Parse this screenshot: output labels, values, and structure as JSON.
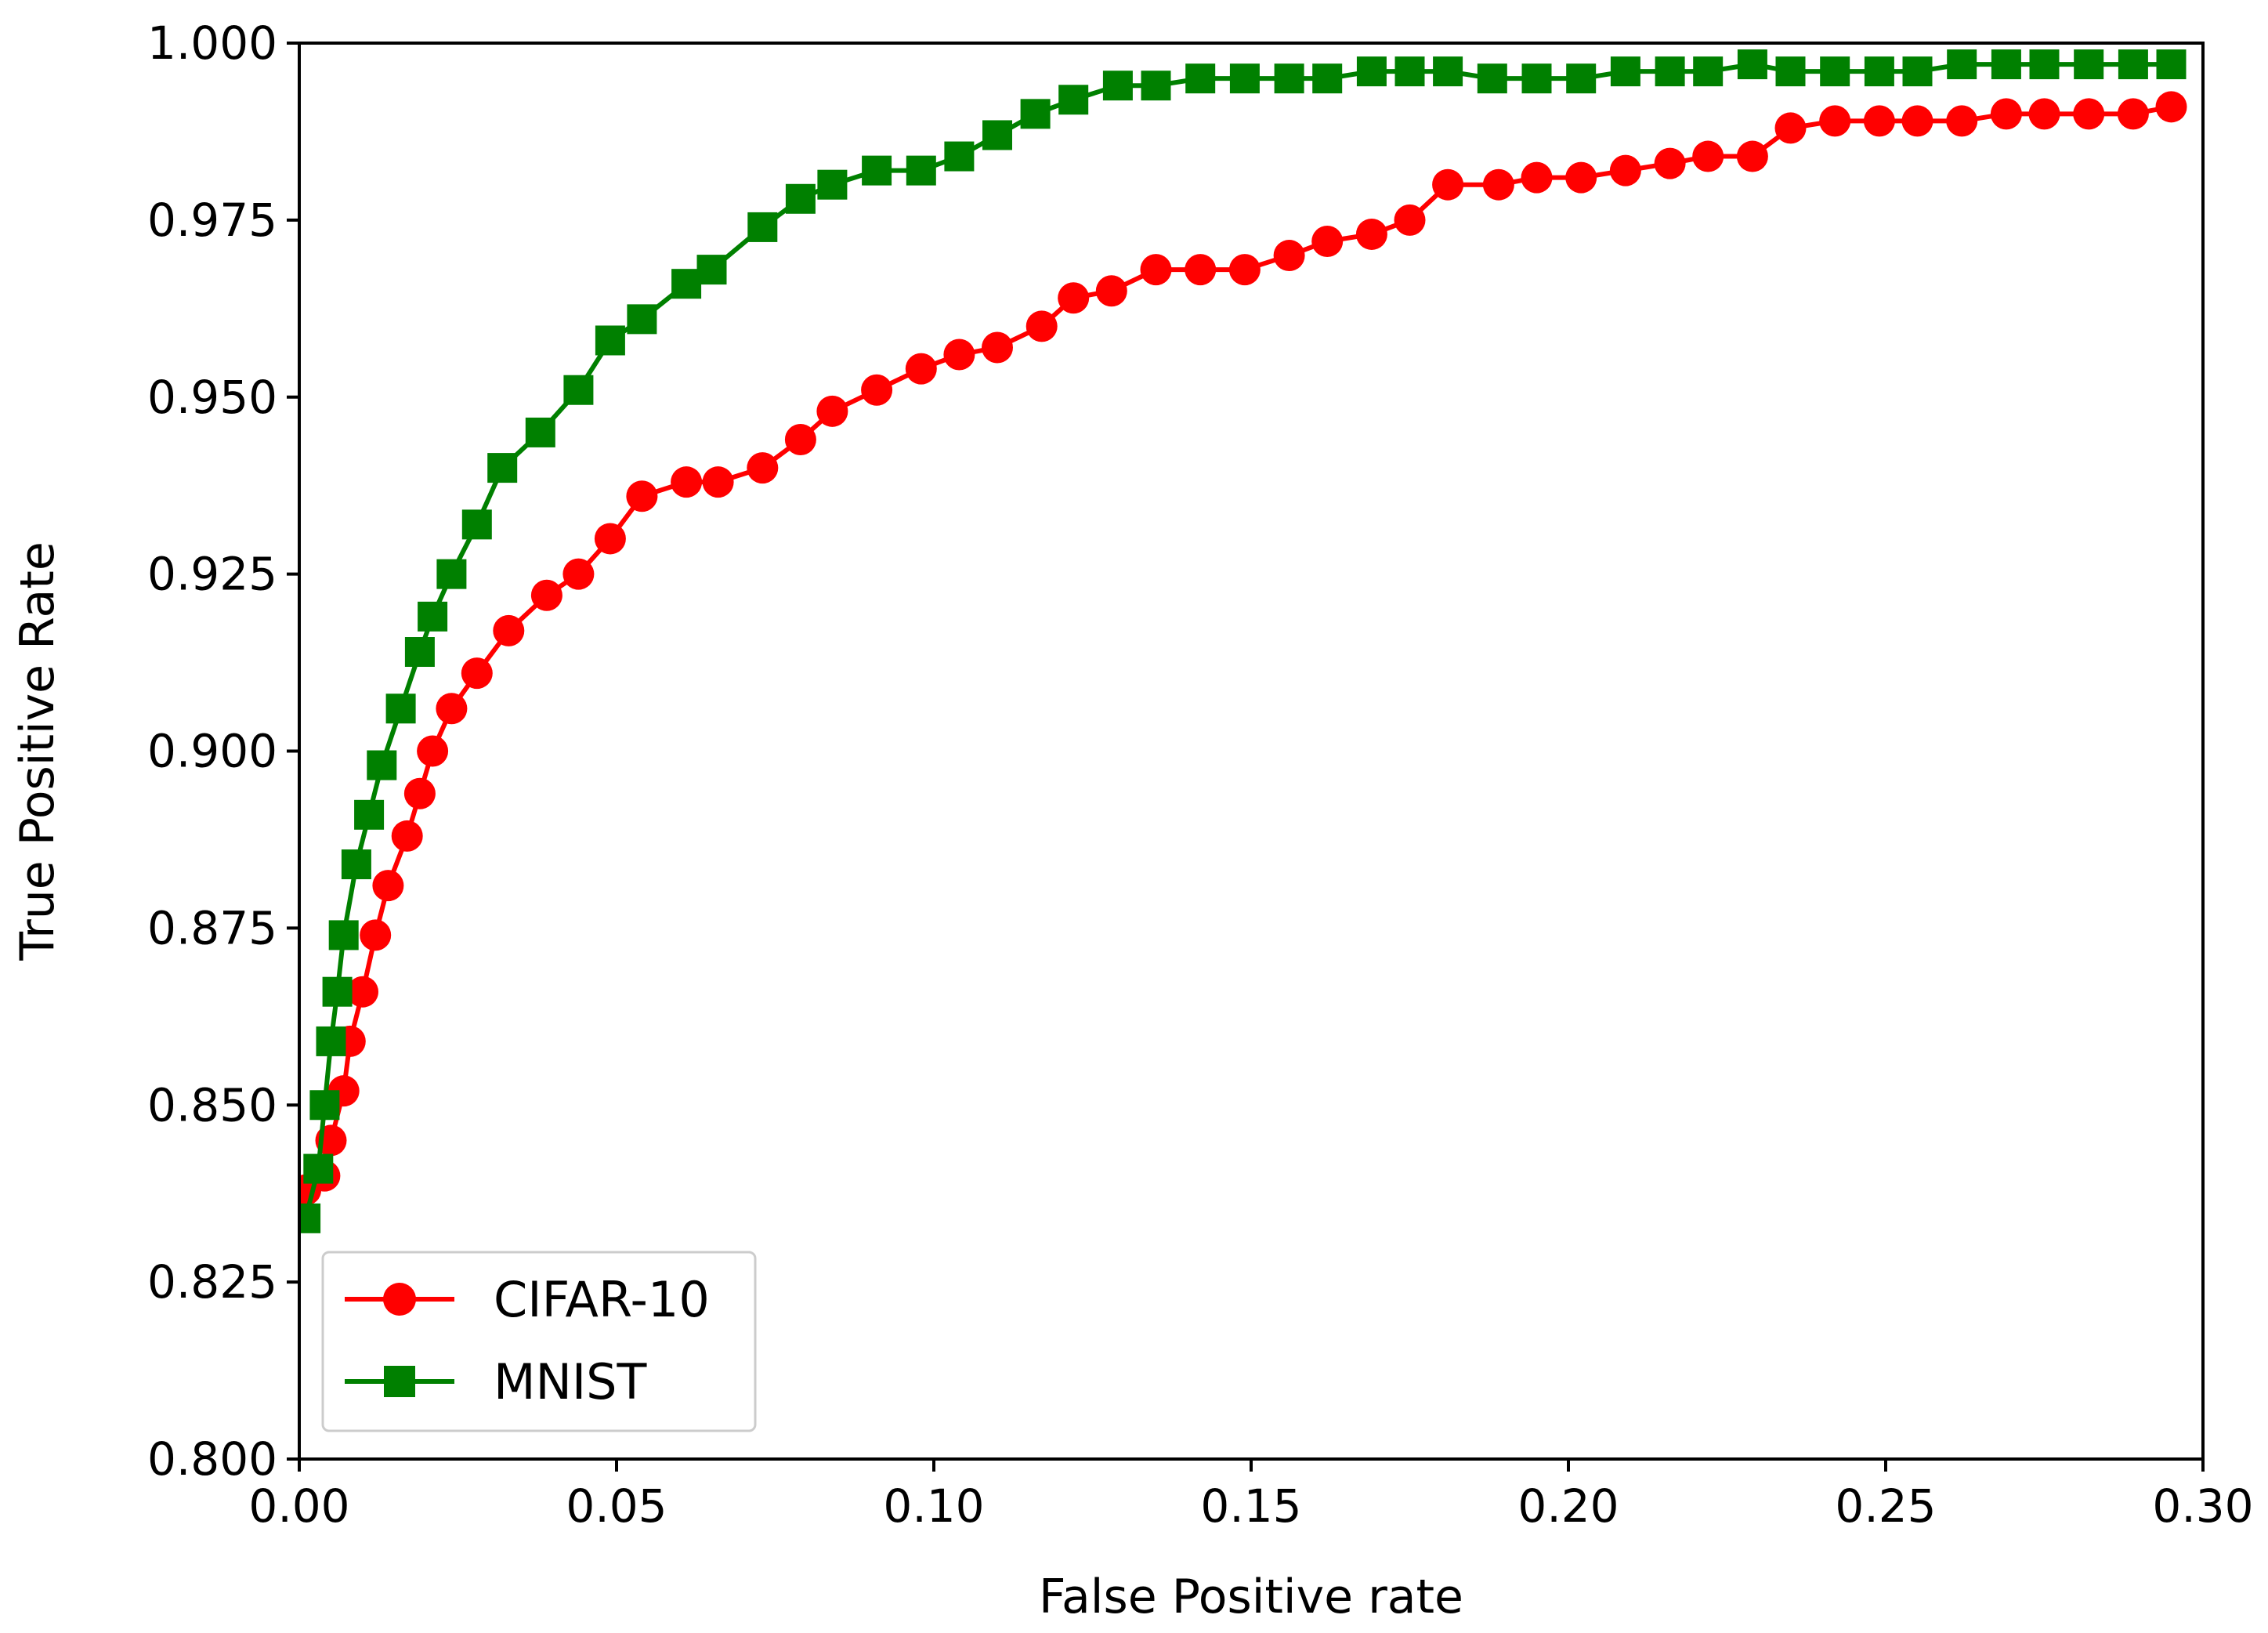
{
  "chart_data": {
    "type": "line",
    "title": "",
    "xlabel": "False Positive rate",
    "ylabel": "True Positive Rate",
    "xlim": [
      0.0,
      0.3
    ],
    "ylim": [
      0.8,
      1.0
    ],
    "xticks": [
      "0.00",
      "0.05",
      "0.10",
      "0.15",
      "0.20",
      "0.25",
      "0.30"
    ],
    "yticks": [
      "0.800",
      "0.825",
      "0.850",
      "0.875",
      "0.900",
      "0.925",
      "0.950",
      "0.975",
      "1.000"
    ],
    "grid": false,
    "legend": "lower-left",
    "series": [
      {
        "name": "CIFAR-10",
        "color": "#ff0000",
        "marker": "circle",
        "x": [
          0.001,
          0.004,
          0.005,
          0.007,
          0.008,
          0.01,
          0.012,
          0.014,
          0.017,
          0.019,
          0.021,
          0.024,
          0.028,
          0.033,
          0.039,
          0.044,
          0.049,
          0.054,
          0.061,
          0.066,
          0.073,
          0.079,
          0.084,
          0.091,
          0.098,
          0.104,
          0.11,
          0.117,
          0.122,
          0.128,
          0.135,
          0.142,
          0.149,
          0.156,
          0.162,
          0.169,
          0.175,
          0.181,
          0.189,
          0.195,
          0.202,
          0.209,
          0.216,
          0.222,
          0.229,
          0.235,
          0.242,
          0.249,
          0.255,
          0.262,
          0.269,
          0.275,
          0.282,
          0.289,
          0.295
        ],
        "y": [
          0.838,
          0.84,
          0.845,
          0.852,
          0.859,
          0.866,
          0.874,
          0.881,
          0.888,
          0.894,
          0.9,
          0.906,
          0.911,
          0.917,
          0.922,
          0.925,
          0.93,
          0.936,
          0.938,
          0.938,
          0.94,
          0.944,
          0.948,
          0.951,
          0.954,
          0.956,
          0.957,
          0.96,
          0.964,
          0.965,
          0.968,
          0.968,
          0.968,
          0.97,
          0.972,
          0.973,
          0.975,
          0.98,
          0.98,
          0.981,
          0.981,
          0.982,
          0.983,
          0.984,
          0.984,
          0.988,
          0.989,
          0.989,
          0.989,
          0.989,
          0.99,
          0.99,
          0.99,
          0.99,
          0.991
        ]
      },
      {
        "name": "MNIST",
        "color": "#008000",
        "marker": "square",
        "x": [
          0.001,
          0.003,
          0.004,
          0.005,
          0.006,
          0.007,
          0.009,
          0.011,
          0.013,
          0.016,
          0.019,
          0.021,
          0.024,
          0.028,
          0.032,
          0.038,
          0.044,
          0.049,
          0.054,
          0.061,
          0.065,
          0.073,
          0.079,
          0.084,
          0.091,
          0.098,
          0.104,
          0.11,
          0.116,
          0.122,
          0.129,
          0.135,
          0.142,
          0.149,
          0.156,
          0.162,
          0.169,
          0.175,
          0.181,
          0.188,
          0.195,
          0.202,
          0.209,
          0.216,
          0.222,
          0.229,
          0.235,
          0.242,
          0.249,
          0.255,
          0.262,
          0.269,
          0.275,
          0.282,
          0.289,
          0.295
        ],
        "y": [
          0.834,
          0.841,
          0.85,
          0.859,
          0.866,
          0.874,
          0.884,
          0.891,
          0.898,
          0.906,
          0.914,
          0.919,
          0.925,
          0.932,
          0.94,
          0.945,
          0.951,
          0.958,
          0.961,
          0.966,
          0.968,
          0.974,
          0.978,
          0.98,
          0.982,
          0.982,
          0.984,
          0.987,
          0.99,
          0.992,
          0.994,
          0.994,
          0.995,
          0.995,
          0.995,
          0.995,
          0.996,
          0.996,
          0.996,
          0.995,
          0.995,
          0.995,
          0.996,
          0.996,
          0.996,
          0.997,
          0.996,
          0.996,
          0.996,
          0.996,
          0.997,
          0.997,
          0.997,
          0.997,
          0.997,
          0.997
        ]
      }
    ]
  }
}
